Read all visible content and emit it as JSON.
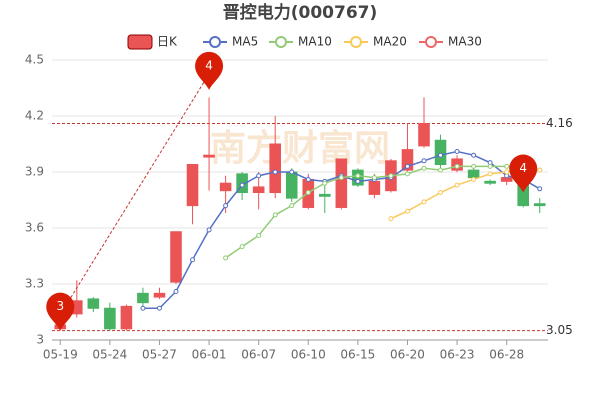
{
  "chart_data": {
    "type": "candlestick",
    "title": "晋控电力(000767)",
    "watermark": "南方财富网",
    "categories": [
      "05-19",
      null,
      null,
      "05-24",
      null,
      null,
      "05-27",
      null,
      null,
      "06-01",
      null,
      null,
      "06-07",
      null,
      null,
      "06-10",
      null,
      null,
      "06-15",
      null,
      null,
      "06-20",
      null,
      null,
      "06-23",
      null,
      null,
      "06-28",
      null,
      null
    ],
    "candle": {
      "name": "日K",
      "up_color": "#eb5454",
      "down_color": "#47b262",
      "open": [
        3.06,
        3.14,
        3.22,
        3.17,
        3.06,
        3.25,
        3.23,
        3.31,
        3.72,
        3.98,
        3.8,
        3.89,
        3.79,
        3.79,
        3.9,
        3.71,
        3.78,
        3.71,
        3.91,
        3.78,
        3.8,
        3.91,
        4.04,
        4.07,
        3.91,
        3.91,
        3.85,
        3.85,
        3.86,
        3.73
      ],
      "close": [
        3.08,
        3.21,
        3.17,
        3.06,
        3.18,
        3.2,
        3.25,
        3.58,
        3.94,
        3.99,
        3.84,
        3.79,
        3.82,
        4.05,
        3.76,
        3.86,
        3.77,
        3.97,
        3.83,
        3.85,
        3.96,
        4.02,
        4.16,
        3.94,
        3.97,
        3.87,
        3.84,
        3.87,
        3.72,
        3.72
      ],
      "low": [
        3.05,
        3.12,
        3.15,
        3.05,
        3.05,
        3.18,
        3.22,
        3.3,
        3.62,
        3.8,
        3.68,
        3.75,
        3.7,
        3.76,
        3.74,
        3.7,
        3.68,
        3.7,
        3.82,
        3.76,
        3.79,
        3.88,
        4.03,
        3.92,
        3.9,
        3.86,
        3.83,
        3.83,
        3.71,
        3.68
      ],
      "high": [
        3.1,
        3.32,
        3.23,
        3.2,
        3.19,
        3.28,
        3.28,
        3.58,
        3.94,
        4.3,
        3.88,
        3.9,
        3.9,
        4.2,
        3.92,
        3.89,
        3.85,
        3.97,
        3.92,
        3.89,
        3.97,
        4.16,
        4.3,
        4.1,
        3.99,
        3.92,
        3.86,
        3.88,
        3.9,
        3.76
      ]
    },
    "series": [
      {
        "name": "MA5",
        "color": "#5470c6",
        "values": [
          null,
          null,
          null,
          null,
          null,
          3.17,
          3.17,
          3.26,
          3.43,
          3.59,
          3.72,
          3.83,
          3.88,
          3.9,
          3.9,
          3.86,
          3.85,
          3.88,
          3.85,
          3.86,
          3.87,
          3.93,
          3.96,
          3.99,
          4.01,
          3.99,
          3.95,
          3.88,
          3.86,
          3.81
        ]
      },
      {
        "name": "MA10",
        "color": "#91cc75",
        "values": [
          null,
          null,
          null,
          null,
          null,
          null,
          null,
          null,
          null,
          null,
          3.44,
          3.5,
          3.56,
          3.67,
          3.72,
          3.79,
          3.84,
          3.87,
          3.88,
          3.87,
          3.88,
          3.89,
          3.92,
          3.91,
          3.93,
          3.93,
          3.93,
          3.93,
          3.93,
          3.91
        ]
      },
      {
        "name": "MA20",
        "color": "#fac858",
        "values": [
          null,
          null,
          null,
          null,
          null,
          null,
          null,
          null,
          null,
          null,
          null,
          null,
          null,
          null,
          null,
          null,
          null,
          null,
          null,
          null,
          3.65,
          3.69,
          3.74,
          3.79,
          3.83,
          3.86,
          3.89,
          3.9,
          3.91,
          3.91
        ]
      },
      {
        "name": "MA30",
        "color": "#ee6666",
        "values": [
          null,
          null,
          null,
          null,
          null,
          null,
          null,
          null,
          null,
          null,
          null,
          null,
          null,
          null,
          null,
          null,
          null,
          null,
          null,
          null,
          null,
          null,
          null,
          null,
          null,
          null,
          null,
          null,
          null,
          null
        ]
      }
    ],
    "ref_lines": [
      4.16,
      3.05
    ],
    "annotations": [
      {
        "label": "3",
        "category": "05-19",
        "value": 3.05
      },
      {
        "label": "4",
        "category": "06-01",
        "value": 4.34
      },
      {
        "label": "4",
        "category": "06-29",
        "value": 3.79
      }
    ],
    "ylim": [
      3,
      4.5
    ],
    "yticks": [
      3,
      3.3,
      3.6,
      3.9,
      4.2,
      4.5
    ],
    "grid": true
  }
}
